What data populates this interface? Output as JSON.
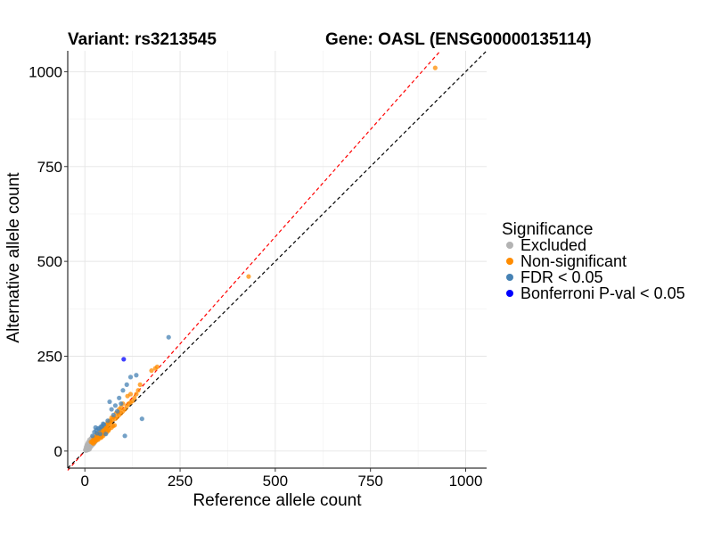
{
  "chart_data": {
    "type": "scatter",
    "title_left": "Variant: rs3213545",
    "title_right": "Gene: OASL (ENSG00000135114)",
    "xlabel": "Reference allele count",
    "ylabel": "Alternative allele count",
    "xlim": [
      -45,
      1055
    ],
    "ylim": [
      -45,
      1055
    ],
    "xticks": [
      0,
      250,
      500,
      750,
      1000
    ],
    "yticks": [
      0,
      250,
      500,
      750,
      1000
    ],
    "xtick_labels": [
      "0",
      "250",
      "500",
      "750",
      "1000"
    ],
    "ytick_labels": [
      "0",
      "250",
      "500",
      "750",
      "1000"
    ],
    "grid": true,
    "reference_lines": [
      {
        "name": "identity",
        "slope": 1.0,
        "intercept": 0,
        "color": "#000000",
        "style": "dashed"
      },
      {
        "name": "fit",
        "slope": 1.13,
        "intercept": 0,
        "color": "#ff0000",
        "style": "dashed"
      }
    ],
    "legend": {
      "title": "Significance",
      "placement": "right",
      "entries": [
        {
          "label": "Excluded",
          "color": "#b3b3b3"
        },
        {
          "label": "Non-significant",
          "color": "#ff8c00"
        },
        {
          "label": "FDR < 0.05",
          "color": "#4682b4"
        },
        {
          "label": "Bonferroni P-val < 0.05",
          "color": "#0000ff"
        }
      ]
    },
    "series": [
      {
        "name": "Excluded",
        "color": "#b3b3b3",
        "points": [
          [
            2,
            1
          ],
          [
            3,
            4
          ],
          [
            5,
            2
          ],
          [
            4,
            7
          ],
          [
            6,
            5
          ],
          [
            8,
            3
          ],
          [
            7,
            9
          ],
          [
            10,
            6
          ],
          [
            9,
            12
          ],
          [
            12,
            8
          ],
          [
            11,
            15
          ],
          [
            14,
            10
          ],
          [
            13,
            18
          ],
          [
            16,
            12
          ],
          [
            15,
            20
          ],
          [
            18,
            14
          ],
          [
            17,
            23
          ],
          [
            20,
            16
          ],
          [
            19,
            26
          ],
          [
            22,
            18
          ],
          [
            21,
            28
          ],
          [
            24,
            20
          ],
          [
            23,
            31
          ],
          [
            8,
            22
          ],
          [
            5,
            15
          ],
          [
            3,
            10
          ],
          [
            10,
            25
          ],
          [
            12,
            30
          ],
          [
            6,
            18
          ],
          [
            25,
            22
          ],
          [
            28,
            25
          ],
          [
            14,
            28
          ],
          [
            16,
            33
          ],
          [
            4,
            12
          ],
          [
            7,
            17
          ],
          [
            9,
            8
          ],
          [
            11,
            4
          ],
          [
            13,
            6
          ],
          [
            2,
            5
          ],
          [
            1,
            3
          ],
          [
            6,
            11
          ],
          [
            20,
            32
          ],
          [
            18,
            35
          ],
          [
            22,
            38
          ],
          [
            26,
            30
          ]
        ]
      },
      {
        "name": "Non-significant",
        "color": "#ff8c00",
        "points": [
          [
            20,
            22
          ],
          [
            22,
            20
          ],
          [
            24,
            26
          ],
          [
            26,
            24
          ],
          [
            28,
            30
          ],
          [
            30,
            28
          ],
          [
            32,
            34
          ],
          [
            34,
            32
          ],
          [
            36,
            38
          ],
          [
            38,
            36
          ],
          [
            40,
            42
          ],
          [
            42,
            40
          ],
          [
            44,
            46
          ],
          [
            46,
            44
          ],
          [
            48,
            50
          ],
          [
            50,
            48
          ],
          [
            30,
            35
          ],
          [
            35,
            30
          ],
          [
            40,
            48
          ],
          [
            48,
            40
          ],
          [
            25,
            30
          ],
          [
            45,
            52
          ],
          [
            52,
            45
          ],
          [
            55,
            60
          ],
          [
            60,
            55
          ],
          [
            58,
            64
          ],
          [
            64,
            58
          ],
          [
            62,
            70
          ],
          [
            70,
            62
          ],
          [
            66,
            74
          ],
          [
            74,
            66
          ],
          [
            35,
            42
          ],
          [
            42,
            35
          ],
          [
            33,
            40
          ],
          [
            27,
            33
          ],
          [
            37,
            44
          ],
          [
            44,
            37
          ],
          [
            50,
            58
          ],
          [
            58,
            50
          ],
          [
            54,
            62
          ],
          [
            62,
            54
          ],
          [
            68,
            78
          ],
          [
            78,
            68
          ],
          [
            72,
            82
          ],
          [
            80,
            85
          ],
          [
            85,
            90
          ],
          [
            90,
            95
          ],
          [
            95,
            100
          ],
          [
            100,
            105
          ],
          [
            105,
            110
          ],
          [
            110,
            118
          ],
          [
            115,
            125
          ],
          [
            120,
            128
          ],
          [
            125,
            132
          ],
          [
            130,
            140
          ],
          [
            135,
            150
          ],
          [
            140,
            160
          ],
          [
            145,
            175
          ],
          [
            90,
            110
          ],
          [
            100,
            125
          ],
          [
            112,
            145
          ],
          [
            120,
            150
          ],
          [
            175,
            212
          ],
          [
            185,
            218
          ],
          [
            190,
            222
          ],
          [
            60,
            75
          ],
          [
            65,
            80
          ],
          [
            75,
            90
          ],
          [
            82,
            100
          ],
          [
            88,
            102
          ],
          [
            95,
            115
          ],
          [
            70,
            88
          ],
          [
            57,
            70
          ],
          [
            49,
            60
          ],
          [
            43,
            55
          ],
          [
            38,
            48
          ],
          [
            31,
            45
          ],
          [
            29,
            38
          ],
          [
            23,
            33
          ],
          [
            21,
            28
          ],
          [
            19,
            25
          ],
          [
            16,
            24
          ],
          [
            430,
            460
          ],
          [
            920,
            1010
          ]
        ]
      },
      {
        "name": "FDR < 0.05",
        "color": "#4682b4",
        "points": [
          [
            20,
            40
          ],
          [
            25,
            50
          ],
          [
            30,
            55
          ],
          [
            35,
            60
          ],
          [
            28,
            62
          ],
          [
            40,
            45
          ],
          [
            45,
            65
          ],
          [
            50,
            70
          ],
          [
            60,
            80
          ],
          [
            65,
            130
          ],
          [
            70,
            110
          ],
          [
            80,
            120
          ],
          [
            90,
            140
          ],
          [
            100,
            160
          ],
          [
            110,
            175
          ],
          [
            120,
            195
          ],
          [
            135,
            200
          ],
          [
            150,
            85
          ],
          [
            105,
            40
          ],
          [
            220,
            300
          ],
          [
            55,
            45
          ],
          [
            42,
            64
          ],
          [
            38,
            58
          ],
          [
            75,
            95
          ],
          [
            85,
            105
          ],
          [
            95,
            125
          ],
          [
            48,
            72
          ],
          [
            32,
            47
          ]
        ]
      },
      {
        "name": "Bonferroni P-val < 0.05",
        "color": "#0000ff",
        "points": [
          [
            102,
            242
          ]
        ]
      }
    ]
  }
}
